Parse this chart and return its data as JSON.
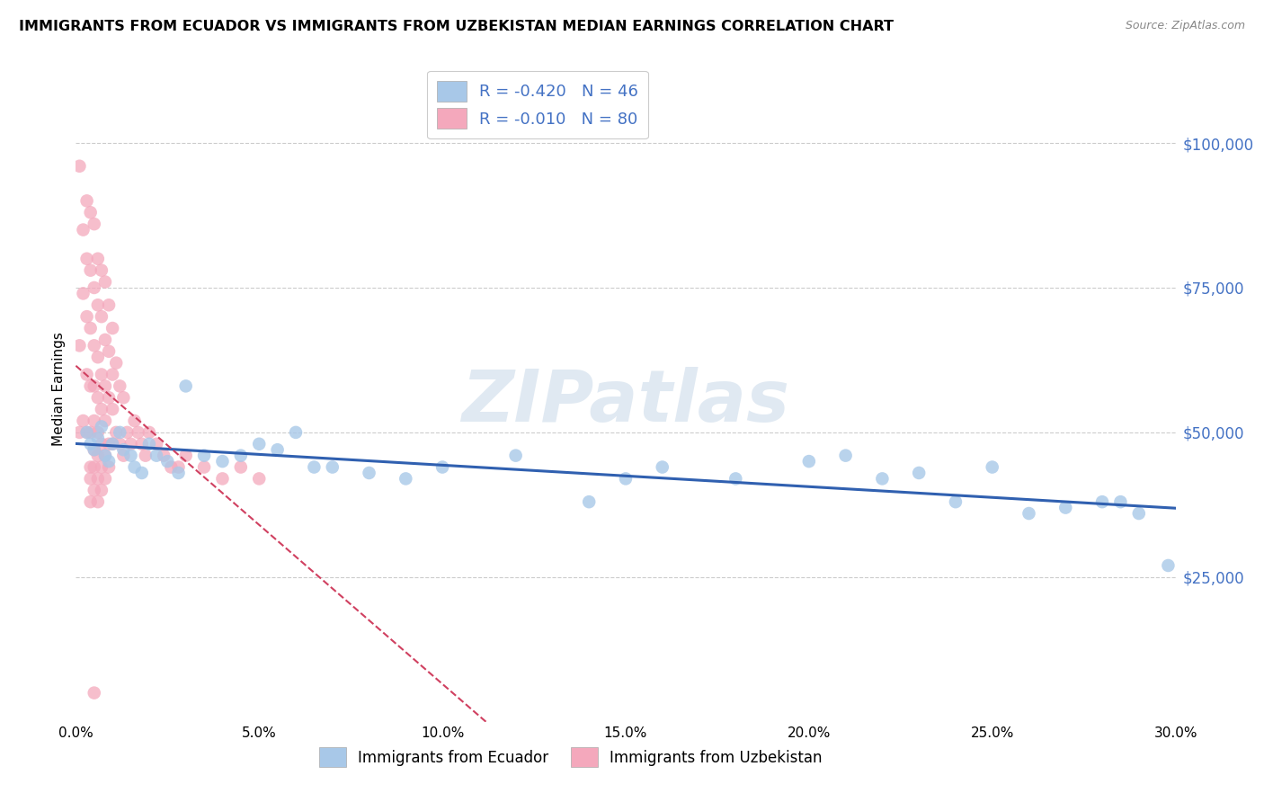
{
  "title": "IMMIGRANTS FROM ECUADOR VS IMMIGRANTS FROM UZBEKISTAN MEDIAN EARNINGS CORRELATION CHART",
  "source": "Source: ZipAtlas.com",
  "ylabel": "Median Earnings",
  "yticks": [
    25000,
    50000,
    75000,
    100000
  ],
  "ylabels": [
    "$25,000",
    "$50,000",
    "$75,000",
    "$100,000"
  ],
  "xlim": [
    0.0,
    0.3
  ],
  "ylim": [
    0,
    115000
  ],
  "legend_ecuador": "R = -0.420   N = 46",
  "legend_uzbekistan": "R = -0.010   N = 80",
  "legend_bottom_ecuador": "Immigrants from Ecuador",
  "legend_bottom_uzbekistan": "Immigrants from Uzbekistan",
  "color_ecuador": "#a8c8e8",
  "color_uzbekistan": "#f4a8bc",
  "color_ecuador_line": "#3060b0",
  "color_uzbekistan_line": "#d04060",
  "color_axis_labels": "#4472c4",
  "ecuador_x": [
    0.003,
    0.004,
    0.005,
    0.006,
    0.007,
    0.008,
    0.009,
    0.01,
    0.012,
    0.013,
    0.015,
    0.016,
    0.018,
    0.02,
    0.022,
    0.025,
    0.028,
    0.03,
    0.035,
    0.04,
    0.045,
    0.05,
    0.055,
    0.06,
    0.065,
    0.07,
    0.08,
    0.09,
    0.1,
    0.12,
    0.14,
    0.15,
    0.16,
    0.18,
    0.2,
    0.21,
    0.22,
    0.23,
    0.24,
    0.25,
    0.26,
    0.27,
    0.28,
    0.285,
    0.29,
    0.298
  ],
  "ecuador_y": [
    50000,
    48000,
    47000,
    49000,
    51000,
    46000,
    45000,
    48000,
    50000,
    47000,
    46000,
    44000,
    43000,
    48000,
    46000,
    45000,
    43000,
    58000,
    46000,
    45000,
    46000,
    48000,
    47000,
    50000,
    44000,
    44000,
    43000,
    42000,
    44000,
    46000,
    38000,
    42000,
    44000,
    42000,
    45000,
    46000,
    42000,
    43000,
    38000,
    44000,
    36000,
    37000,
    38000,
    38000,
    36000,
    27000
  ],
  "uzbekistan_x": [
    0.001,
    0.001,
    0.001,
    0.002,
    0.002,
    0.002,
    0.003,
    0.003,
    0.003,
    0.003,
    0.003,
    0.004,
    0.004,
    0.004,
    0.004,
    0.004,
    0.004,
    0.004,
    0.004,
    0.005,
    0.005,
    0.005,
    0.005,
    0.005,
    0.005,
    0.005,
    0.005,
    0.006,
    0.006,
    0.006,
    0.006,
    0.006,
    0.006,
    0.006,
    0.006,
    0.007,
    0.007,
    0.007,
    0.007,
    0.007,
    0.007,
    0.007,
    0.008,
    0.008,
    0.008,
    0.008,
    0.008,
    0.008,
    0.009,
    0.009,
    0.009,
    0.009,
    0.009,
    0.01,
    0.01,
    0.01,
    0.01,
    0.011,
    0.011,
    0.012,
    0.012,
    0.013,
    0.013,
    0.014,
    0.015,
    0.016,
    0.017,
    0.018,
    0.019,
    0.02,
    0.022,
    0.024,
    0.026,
    0.028,
    0.03,
    0.035,
    0.04,
    0.045,
    0.05,
    0.005
  ],
  "uzbekistan_y": [
    96000,
    65000,
    50000,
    85000,
    74000,
    52000,
    90000,
    80000,
    70000,
    60000,
    50000,
    88000,
    78000,
    68000,
    58000,
    50000,
    44000,
    42000,
    38000,
    86000,
    75000,
    65000,
    58000,
    52000,
    47000,
    44000,
    40000,
    80000,
    72000,
    63000,
    56000,
    50000,
    46000,
    42000,
    38000,
    78000,
    70000,
    60000,
    54000,
    48000,
    44000,
    40000,
    76000,
    66000,
    58000,
    52000,
    46000,
    42000,
    72000,
    64000,
    56000,
    48000,
    44000,
    68000,
    60000,
    54000,
    48000,
    62000,
    50000,
    58000,
    48000,
    56000,
    46000,
    50000,
    48000,
    52000,
    50000,
    48000,
    46000,
    50000,
    48000,
    46000,
    44000,
    44000,
    46000,
    44000,
    42000,
    44000,
    42000,
    5000
  ]
}
